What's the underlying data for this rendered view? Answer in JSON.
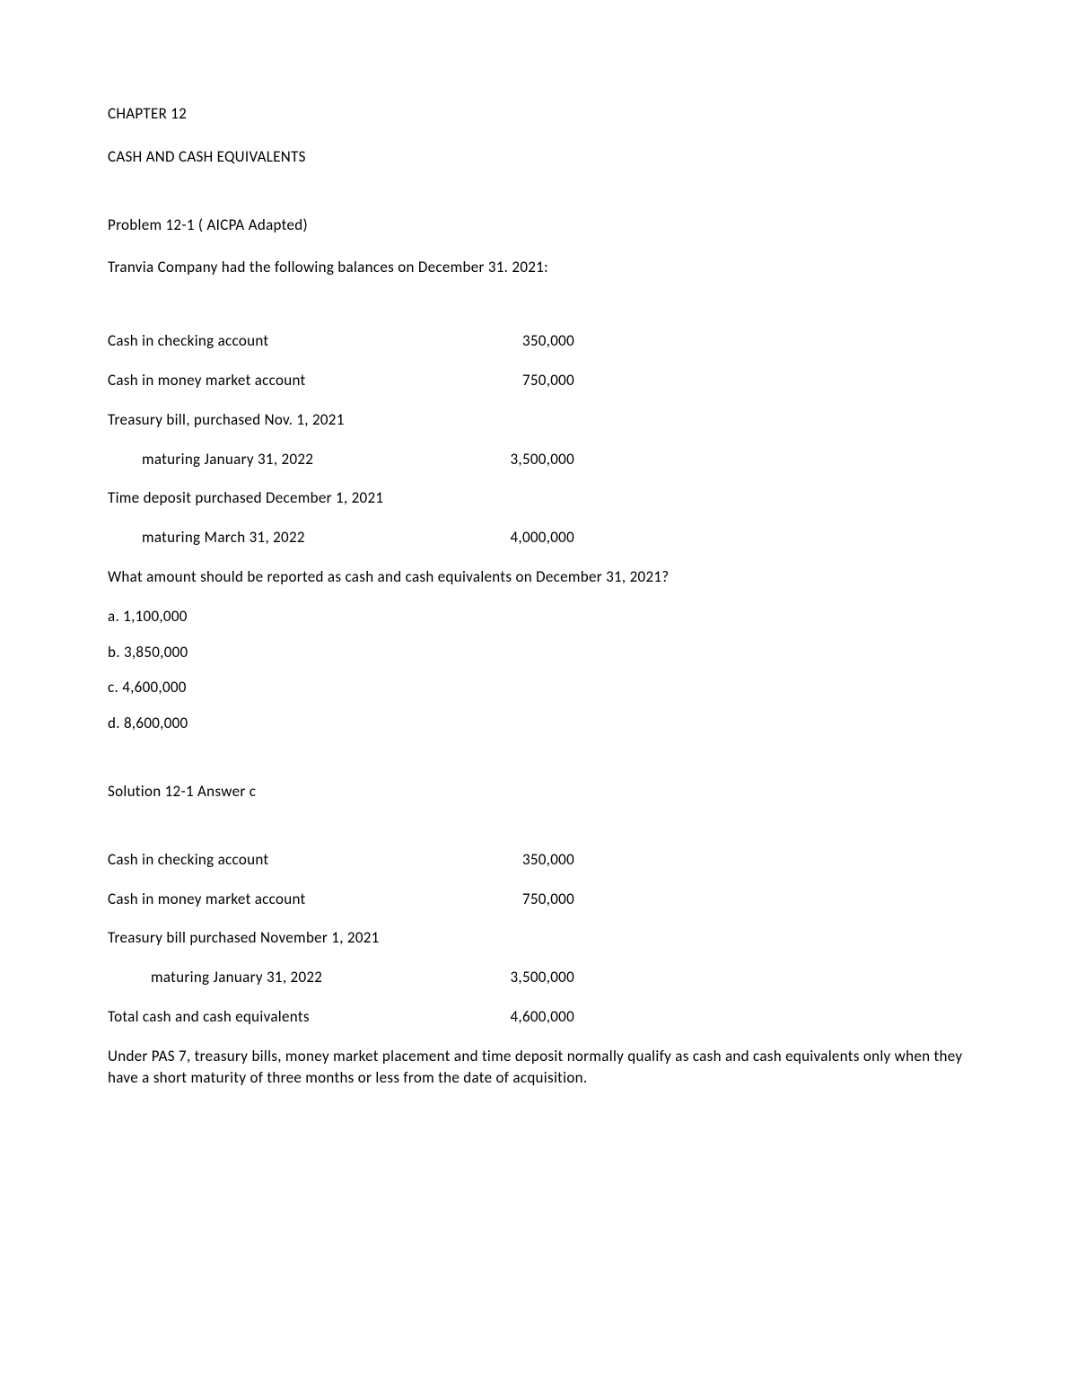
{
  "chapter": "CHAPTER 12",
  "title": "CASH AND CASH EQUIVALENTS",
  "problem_heading": "Problem 12-1 ( AICPA Adapted)",
  "problem_intro": "Tranvia Company had the following balances on December 31. 2021:",
  "balances": [
    {
      "label": "Cash in checking account",
      "value": "350,000",
      "indent": 0
    },
    {
      "label": "Cash in money market account",
      "value": "750,000",
      "indent": 0
    },
    {
      "label": "Treasury bill, purchased Nov. 1, 2021",
      "value": "",
      "indent": 0
    },
    {
      "label": "maturing January 31, 2022",
      "value": "3,500,000",
      "indent": 1
    },
    {
      "label": "Time deposit purchased December 1, 2021",
      "value": "",
      "indent": 0
    },
    {
      "label": "maturing March 31, 2022",
      "value": "4,000,000",
      "indent": 1
    }
  ],
  "question": "What amount should be reported as cash and cash equivalents on December 31, 2021?",
  "choices": [
    "a. 1,100,000",
    "b. 3,850,000",
    "c. 4,600,000",
    "d. 8,600,000"
  ],
  "solution_heading": "Solution 12-1 Answer c",
  "solution_rows": [
    {
      "label": "Cash in checking account",
      "value": "350,000",
      "indent": 0
    },
    {
      "label": "Cash in money market account",
      "value": "750,000",
      "indent": 0
    },
    {
      "label": "Treasury bill purchased November 1, 2021",
      "value": "",
      "indent": 0
    },
    {
      "label": "maturing January 31, 2022",
      "value": "3,500,000",
      "indent": 2
    },
    {
      "label": "Total cash and cash equivalents",
      "value": "4,600,000",
      "indent": 0
    }
  ],
  "explanation": "Under PAS 7, treasury bills, money market placement and time deposit normally qualify as cash and cash equivalents only when they have a short maturity of three months or less from the date of acquisition."
}
